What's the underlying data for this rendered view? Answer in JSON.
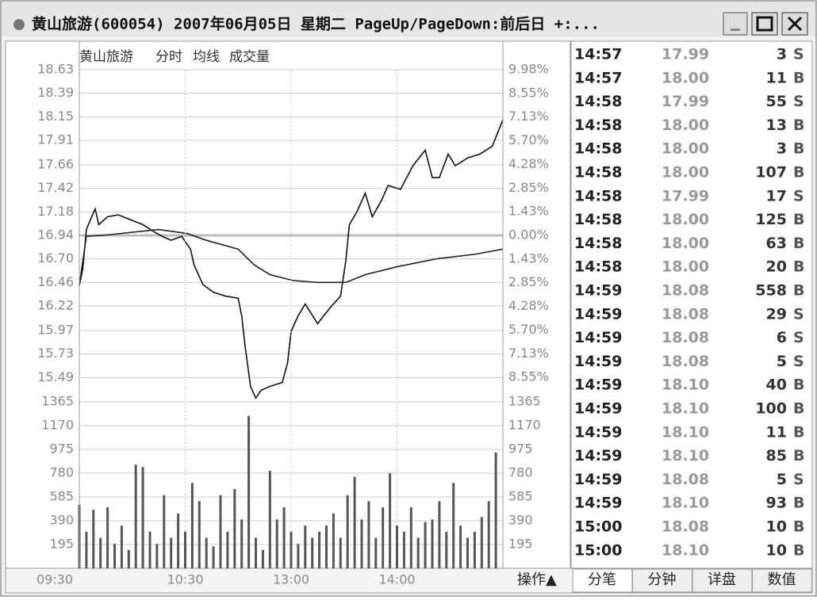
{
  "window": {
    "title": "黄山旅游(600054)  2007年06月05日 星期二 PageUp/PageDown:前后日 +:..."
  },
  "chart_data": [
    {
      "type": "line",
      "title": "黄山旅游",
      "xlim": [
        0,
        240
      ],
      "ylim": [
        15.25,
        18.63
      ],
      "yticks": [
        18.63,
        18.39,
        18.15,
        17.91,
        17.66,
        17.42,
        17.18,
        16.94,
        {
          "value": 16.7,
          "label": "16.70"
        },
        16.46,
        16.22,
        15.97,
        15.73,
        15.49
      ],
      "y2lim": [
        -9.98,
        9.98
      ],
      "y2ticks": [
        {
          "value": 9.98,
          "label": "9.98%"
        },
        {
          "value": 8.55,
          "label": "8.55%"
        },
        {
          "value": 7.13,
          "label": "7.13%"
        },
        {
          "value": 5.7,
          "label": "5.70%"
        },
        {
          "value": 4.28,
          "label": "4.28%"
        },
        {
          "value": 2.85,
          "label": "2.85%"
        },
        {
          "value": 1.43,
          "label": "1.43%"
        },
        {
          "value": 0,
          "label": "0.00%"
        },
        {
          "value": -1.43,
          "label": "1.43%"
        },
        {
          "value": -2.85,
          "label": "2.85%"
        },
        {
          "value": -4.28,
          "label": "4.28%"
        },
        {
          "value": -5.7,
          "label": "5.70%"
        },
        {
          "value": -7.13,
          "label": "7.13%"
        },
        {
          "value": -8.55,
          "label": "8.55%"
        }
      ],
      "series": [
        {
          "name": "分时",
          "color": "#111111",
          "x": [
            0,
            2,
            4,
            7,
            9,
            11,
            16,
            22,
            29,
            36,
            43,
            47,
            52,
            58,
            63,
            65,
            70,
            76,
            83,
            90,
            92,
            94,
            97,
            100,
            103,
            108,
            115,
            118,
            120,
            124,
            128,
            135,
            142,
            148,
            151,
            153,
            157,
            162,
            166,
            171,
            175,
            182,
            189,
            196,
            200,
            204,
            209,
            213,
            220,
            227,
            234,
            240
          ],
          "values": [
            16.43,
            16.6,
            17.0,
            17.13,
            17.21,
            17.05,
            17.13,
            17.15,
            17.1,
            17.05,
            16.97,
            16.93,
            16.89,
            16.93,
            16.8,
            16.64,
            16.44,
            16.36,
            16.32,
            16.3,
            16.12,
            15.8,
            15.4,
            15.28,
            15.36,
            15.4,
            15.44,
            15.64,
            15.96,
            16.12,
            16.24,
            16.04,
            16.2,
            16.32,
            16.68,
            17.05,
            17.17,
            17.37,
            17.13,
            17.29,
            17.45,
            17.41,
            17.65,
            17.81,
            17.53,
            17.53,
            17.77,
            17.65,
            17.73,
            17.77,
            17.85,
            18.12
          ]
        },
        {
          "name": "均线",
          "color": "#222222",
          "x": [
            0,
            4,
            13,
            45,
            61,
            72,
            90,
            99,
            108,
            121,
            135,
            151,
            162,
            180,
            202,
            225,
            240
          ],
          "values": [
            16.43,
            16.93,
            16.94,
            17.0,
            16.96,
            16.89,
            16.8,
            16.64,
            16.54,
            16.48,
            16.46,
            16.46,
            16.54,
            16.62,
            16.7,
            16.75,
            16.8
          ]
        }
      ]
    },
    {
      "type": "bar",
      "name": "成交量",
      "color": "#555555",
      "xlim": [
        0,
        240
      ],
      "xticks": [
        {
          "value": 0,
          "label": "09:30"
        },
        {
          "value": 60,
          "label": "10:30"
        },
        {
          "value": 120,
          "label": "13:00"
        },
        {
          "value": 180,
          "label": "14:00"
        }
      ],
      "ylim": [
        0,
        1365
      ],
      "yticks": [
        1365,
        1170,
        975,
        780,
        585,
        390,
        195
      ],
      "x": [
        0,
        4,
        8,
        12,
        16,
        20,
        24,
        28,
        32,
        36,
        40,
        44,
        48,
        52,
        56,
        60,
        64,
        68,
        72,
        76,
        80,
        84,
        88,
        92,
        96,
        100,
        104,
        108,
        112,
        116,
        120,
        124,
        128,
        132,
        136,
        140,
        144,
        148,
        152,
        156,
        160,
        164,
        168,
        172,
        176,
        180,
        184,
        188,
        192,
        196,
        200,
        204,
        208,
        212,
        216,
        220,
        224,
        228,
        232,
        236
      ],
      "values": [
        520,
        300,
        480,
        250,
        500,
        200,
        350,
        150,
        850,
        830,
        300,
        200,
        600,
        250,
        450,
        300,
        700,
        550,
        250,
        180,
        600,
        300,
        650,
        400,
        1250,
        250,
        150,
        800,
        400,
        500,
        300,
        200,
        350,
        250,
        300,
        350,
        450,
        250,
        600,
        750,
        400,
        550,
        250,
        500,
        780,
        350,
        300,
        500,
        250,
        380,
        400,
        550,
        300,
        700,
        350,
        250,
        300,
        420,
        550,
        950
      ]
    }
  ],
  "trades": {
    "rows": [
      [
        "14:57",
        "17.99",
        "3",
        "S"
      ],
      [
        "14:57",
        "18.00",
        "11",
        "B"
      ],
      [
        "14:58",
        "17.99",
        "55",
        "S"
      ],
      [
        "14:58",
        "18.00",
        "13",
        "B"
      ],
      [
        "14:58",
        "18.00",
        "3",
        "B"
      ],
      [
        "14:58",
        "18.00",
        "107",
        "B"
      ],
      [
        "14:58",
        "17.99",
        "17",
        "S"
      ],
      [
        "14:58",
        "18.00",
        "125",
        "B"
      ],
      [
        "14:58",
        "18.00",
        "63",
        "B"
      ],
      [
        "14:58",
        "18.00",
        "20",
        "B"
      ],
      [
        "14:59",
        "18.08",
        "558",
        "B"
      ],
      [
        "14:59",
        "18.08",
        "29",
        "S"
      ],
      [
        "14:59",
        "18.08",
        "6",
        "S"
      ],
      [
        "14:59",
        "18.08",
        "5",
        "S"
      ],
      [
        "14:59",
        "18.10",
        "40",
        "B"
      ],
      [
        "14:59",
        "18.10",
        "100",
        "B"
      ],
      [
        "14:59",
        "18.10",
        "11",
        "B"
      ],
      [
        "14:59",
        "18.10",
        "85",
        "B"
      ],
      [
        "14:59",
        "18.08",
        "5",
        "S"
      ],
      [
        "14:59",
        "18.10",
        "93",
        "B"
      ],
      [
        "15:00",
        "18.08",
        "10",
        "B"
      ],
      [
        "15:00",
        "18.10",
        "10",
        "B"
      ]
    ]
  },
  "menu": "操作▲",
  "tabs": [
    "分笔",
    "分钟",
    "详盘",
    "数值"
  ]
}
